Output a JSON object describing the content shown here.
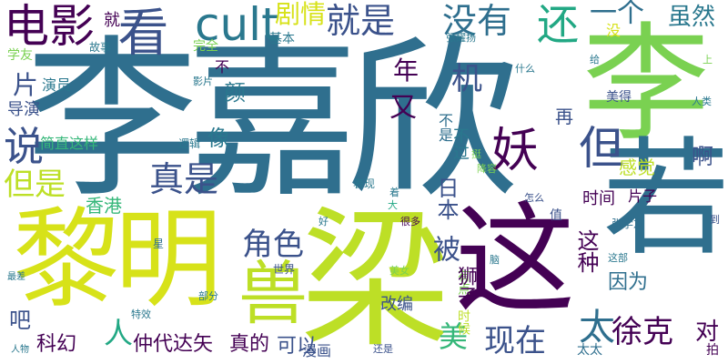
{
  "words": [
    "李嘉欣",
    "李",
    "梁",
    "黎明",
    "这",
    "若",
    "兽",
    "cult",
    "电影",
    "看",
    "就是",
    "没有",
    "还",
    "一个",
    "虽然",
    "剧情",
    "说",
    "妖",
    "但",
    "但是",
    "真是",
    "角色",
    "徐克",
    "现在",
    "被",
    "太",
    "对",
    "科幻",
    "仲代达矢",
    "真的",
    "可以",
    "漫画",
    "改编",
    "因为",
    "这种",
    "香港",
    "日本",
    "美",
    "人",
    "吧",
    "片",
    "年",
    "机",
    "又",
    "颜",
    "像",
    "感觉",
    "啊",
    "时间",
    "片子",
    "再",
    "表现",
    "就",
    "完全",
    "基本",
    "故事",
    "学友",
    "演员",
    "导演",
    "简直这样",
    "不",
    "影片",
    "逻辑",
    "好",
    "很多",
    "星",
    "世界",
    "美女",
    "部分",
    "特效",
    "人物",
    "还是",
    "张学友",
    "这部",
    "值",
    "到",
    "拍",
    "太太",
    "美得",
    "人类",
    "给",
    "上",
    "脑",
    "怎么",
    "降容",
    "挺",
    "着",
    "大",
    "没",
    "有点",
    "时候",
    "狮子",
    "最差",
    "张耀扬",
    "什么",
    "不过",
    "不是"
  ]
}
